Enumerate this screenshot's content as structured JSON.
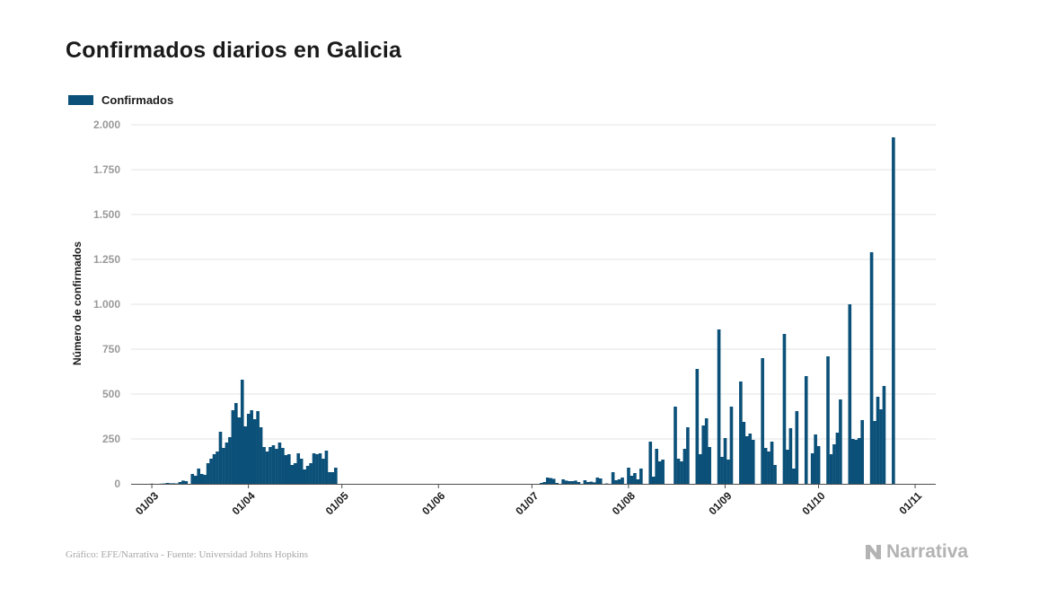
{
  "chart_data": {
    "type": "bar",
    "title": "Confirmados diarios en Galicia",
    "legend": "Confirmados",
    "xlabel": "",
    "ylabel": "Número de confirmados",
    "ylim": [
      0,
      2000
    ],
    "yticks": [
      0,
      250,
      500,
      750,
      1000,
      1250,
      1500,
      1750,
      2000
    ],
    "ytick_labels": [
      "0",
      "250",
      "500",
      "750",
      "1.000",
      "1.250",
      "1.500",
      "1.750",
      "2.000"
    ],
    "xtick_labels": [
      "01/03",
      "01/04",
      "01/05",
      "01/06",
      "01/07",
      "01/08",
      "01/09",
      "01/10",
      "01/11"
    ],
    "x_start": "2020-02-25",
    "num_days": 248,
    "values": [
      0,
      0,
      0,
      0,
      0,
      1,
      0,
      0,
      1,
      2,
      5,
      3,
      3,
      2,
      10,
      18,
      15,
      0,
      55,
      45,
      85,
      55,
      50,
      115,
      140,
      165,
      180,
      290,
      200,
      230,
      260,
      410,
      450,
      370,
      580,
      320,
      390,
      410,
      360,
      405,
      315,
      205,
      180,
      205,
      215,
      195,
      230,
      200,
      160,
      165,
      105,
      115,
      170,
      140,
      80,
      100,
      115,
      170,
      165,
      170,
      140,
      185,
      65,
      65,
      90,
      0,
      0,
      0,
      0,
      0,
      0,
      0,
      0,
      0,
      0,
      0,
      0,
      0,
      0,
      0,
      0,
      0,
      0,
      0,
      0,
      0,
      0,
      0,
      0,
      0,
      0,
      0,
      0,
      0,
      0,
      0,
      0,
      0,
      0,
      0,
      0,
      0,
      0,
      0,
      0,
      0,
      0,
      0,
      0,
      0,
      0,
      0,
      0,
      0,
      0,
      0,
      0,
      0,
      0,
      0,
      0,
      0,
      0,
      0,
      0,
      0,
      0,
      0,
      0,
      0,
      5,
      10,
      35,
      32,
      28,
      5,
      0,
      25,
      18,
      15,
      15,
      18,
      10,
      0,
      20,
      10,
      12,
      8,
      35,
      30,
      0,
      2,
      0,
      65,
      20,
      25,
      35,
      0,
      90,
      45,
      60,
      25,
      85,
      0,
      0,
      235,
      40,
      195,
      125,
      135,
      0,
      0,
      0,
      430,
      140,
      125,
      195,
      315,
      0,
      0,
      640,
      165,
      325,
      365,
      205,
      0,
      0,
      860,
      150,
      255,
      135,
      430,
      0,
      0,
      570,
      345,
      265,
      280,
      245,
      0,
      0,
      700,
      200,
      180,
      235,
      105,
      0,
      0,
      835,
      190,
      310,
      85,
      405,
      0,
      0,
      600,
      0,
      170,
      275,
      210,
      0,
      0,
      710,
      165,
      220,
      285,
      470,
      0,
      0,
      1000,
      250,
      245,
      255,
      355,
      0,
      0,
      1290,
      350,
      485,
      415,
      545,
      0,
      0,
      1930,
      0
    ]
  },
  "footer": {
    "source": "Gráfico: EFE/Narrativa - Fuente: Universidad Johns Hopkins",
    "brand": "Narrativa"
  },
  "colors": {
    "bar": "#0b5078",
    "grid": "#e3e3e3",
    "axis": "#4d4d4d"
  }
}
